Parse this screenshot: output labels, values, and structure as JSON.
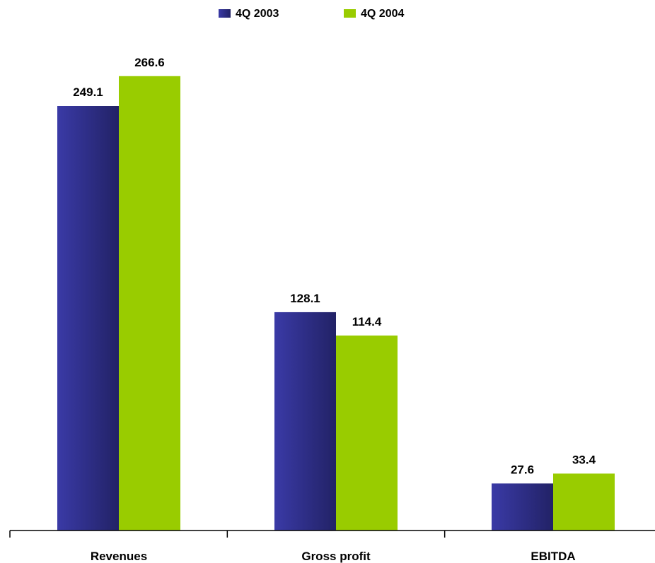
{
  "chart_data": {
    "type": "bar",
    "categories": [
      "Revenues",
      "Gross profit",
      "EBITDA"
    ],
    "series": [
      {
        "name": "4Q 2003",
        "values": [
          249.1,
          128.1,
          27.6
        ],
        "color": "#2E2E8E"
      },
      {
        "name": "4Q 2004",
        "values": [
          266.6,
          114.4,
          33.4
        ],
        "color": "#99CC00"
      }
    ],
    "data_labels": [
      [
        "249.1",
        "128.1",
        "27.6"
      ],
      [
        "266.6",
        "114.4",
        "33.4"
      ]
    ],
    "ylim": [
      0,
      300
    ],
    "grid": false,
    "legend": "top-center"
  }
}
